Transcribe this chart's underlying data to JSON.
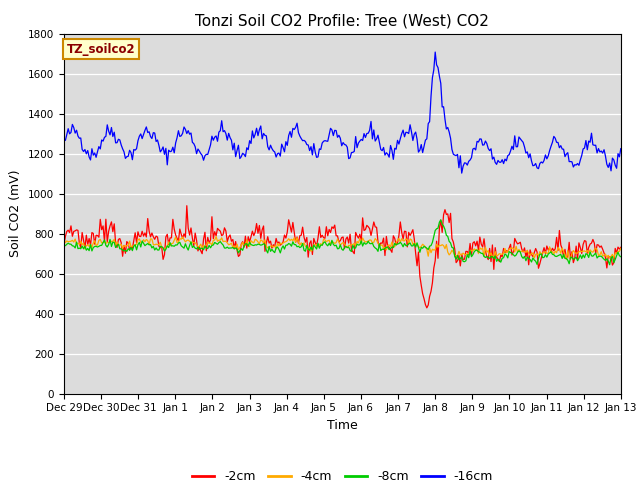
{
  "title": "Tonzi Soil CO2 Profile: Tree (West) CO2",
  "ylabel": "Soil CO2 (mV)",
  "xlabel": "Time",
  "ylim": [
    0,
    1800
  ],
  "legend_label": "TZ_soilco2",
  "line_labels": [
    "-2cm",
    "-4cm",
    "-8cm",
    "-16cm"
  ],
  "line_colors": [
    "#ff0000",
    "#ffaa00",
    "#00cc00",
    "#0000ff"
  ],
  "bg_color": "#dcdcdc",
  "title_fontsize": 11,
  "tick_fontsize": 7.5,
  "label_fontsize": 9,
  "yticks": [
    0,
    200,
    400,
    600,
    800,
    1000,
    1200,
    1400,
    1600,
    1800
  ],
  "tick_labels": [
    "Dec 29",
    "Dec 30",
    "Dec 31",
    "Jan 1",
    "Jan 2",
    "Jan 3",
    "Jan 4",
    "Jan 5",
    "Jan 6",
    "Jan 7",
    "Jan 8",
    "Jan 9",
    "Jan 10",
    "Jan 11",
    "Jan 12",
    "Jan 13"
  ],
  "n_points": 400,
  "xlim": [
    0,
    15
  ]
}
